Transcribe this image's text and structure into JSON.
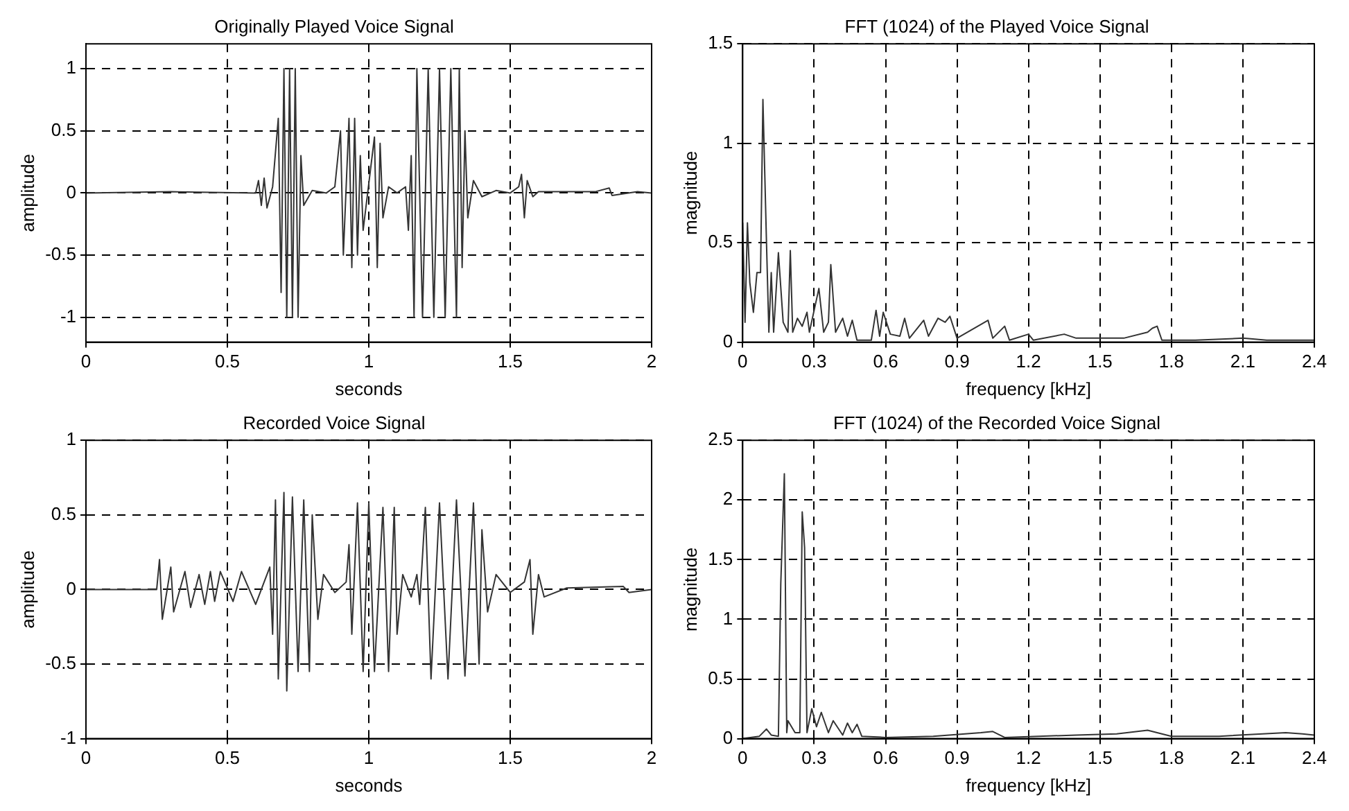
{
  "chart_data": [
    {
      "type": "line",
      "title": "Originally Played Voice Signal",
      "xlabel": "seconds",
      "ylabel": "amplitude",
      "xlim": [
        0,
        2
      ],
      "xticks": [
        0,
        0.5,
        1,
        1.5,
        2
      ],
      "ylim": [
        -1.2,
        1.2
      ],
      "yticks": [
        -1,
        -0.5,
        0,
        0.5,
        1
      ],
      "grid": true,
      "legend": false,
      "marker": "none",
      "line_style": "solid",
      "series": [
        {
          "color": "#333333",
          "x": [
            0,
            0.3,
            0.6,
            0.61,
            0.62,
            0.63,
            0.64,
            0.66,
            0.68,
            0.69,
            0.7,
            0.71,
            0.72,
            0.73,
            0.74,
            0.75,
            0.76,
            0.77,
            0.8,
            0.85,
            0.88,
            0.9,
            0.91,
            0.93,
            0.94,
            0.95,
            0.96,
            0.97,
            0.98,
            1.02,
            1.03,
            1.04,
            1.05,
            1.07,
            1.1,
            1.13,
            1.14,
            1.15,
            1.16,
            1.17,
            1.19,
            1.21,
            1.23,
            1.25,
            1.27,
            1.29,
            1.31,
            1.32,
            1.33,
            1.34,
            1.35,
            1.37,
            1.4,
            1.45,
            1.5,
            1.53,
            1.54,
            1.55,
            1.56,
            1.58,
            1.6,
            1.8,
            1.85,
            1.86,
            1.95,
            2
          ],
          "values": [
            0,
            0.01,
            0,
            0.1,
            -0.1,
            0.12,
            -0.12,
            0.05,
            0.6,
            -0.8,
            1,
            -1,
            1,
            -1,
            1,
            -1,
            0.3,
            -0.1,
            0.02,
            0,
            0.05,
            0.5,
            -0.5,
            0.6,
            -0.6,
            0.6,
            -0.5,
            0.3,
            -0.3,
            0.45,
            -0.6,
            0.4,
            -0.2,
            0.05,
            0,
            0.05,
            -0.3,
            0.3,
            -1,
            1,
            -1,
            1,
            -1,
            1,
            -1,
            1,
            -1,
            1,
            -0.6,
            0.5,
            -0.2,
            0.1,
            -0.03,
            0.02,
            0,
            0.05,
            0.15,
            -0.2,
            0.1,
            -0.03,
            0.01,
            0.01,
            0.04,
            -0.02,
            0.01,
            0
          ]
        }
      ]
    },
    {
      "type": "line",
      "title": "FFT (1024) of the Played Voice Signal",
      "xlabel": "frequency [kHz]",
      "ylabel": "magnitude",
      "xlim": [
        0,
        2.4
      ],
      "xticks": [
        0,
        0.3,
        0.6,
        0.9,
        1.2,
        1.5,
        1.8,
        2.1,
        2.4
      ],
      "ylim": [
        0,
        1.5
      ],
      "yticks": [
        0,
        0.5,
        1,
        1.5
      ],
      "grid": true,
      "legend": false,
      "marker": "none",
      "line_style": "solid",
      "series": [
        {
          "color": "#333333",
          "x": [
            0,
            0.01,
            0.02,
            0.03,
            0.045,
            0.06,
            0.075,
            0.085,
            0.1,
            0.11,
            0.12,
            0.13,
            0.15,
            0.17,
            0.19,
            0.2,
            0.21,
            0.23,
            0.25,
            0.27,
            0.28,
            0.32,
            0.34,
            0.36,
            0.37,
            0.39,
            0.42,
            0.44,
            0.46,
            0.48,
            0.54,
            0.56,
            0.575,
            0.59,
            0.62,
            0.66,
            0.68,
            0.7,
            0.76,
            0.78,
            0.82,
            0.85,
            0.87,
            0.9,
            1.03,
            1.05,
            1.1,
            1.12,
            1.2,
            1.22,
            1.35,
            1.4,
            1.5,
            1.6,
            1.7,
            1.72,
            1.74,
            1.76,
            1.9,
            2.1,
            2.2,
            2.4
          ],
          "values": [
            0.6,
            0.1,
            0.6,
            0.3,
            0.15,
            0.35,
            0.35,
            1.22,
            0.5,
            0.05,
            0.35,
            0.05,
            0.45,
            0.1,
            0.05,
            0.46,
            0.05,
            0.12,
            0.08,
            0.15,
            0.05,
            0.27,
            0.05,
            0.1,
            0.39,
            0.05,
            0.12,
            0.03,
            0.11,
            0.01,
            0.01,
            0.16,
            0.03,
            0.15,
            0.04,
            0.03,
            0.12,
            0.02,
            0.11,
            0.03,
            0.12,
            0.1,
            0.13,
            0.02,
            0.11,
            0.02,
            0.08,
            0.01,
            0.04,
            0.01,
            0.04,
            0.02,
            0.02,
            0.02,
            0.05,
            0.07,
            0.08,
            0.01,
            0.01,
            0.02,
            0.01,
            0.01
          ]
        }
      ]
    },
    {
      "type": "line",
      "title": "Recorded Voice Signal",
      "xlabel": "seconds",
      "ylabel": "amplitude",
      "xlim": [
        0,
        2
      ],
      "xticks": [
        0,
        0.5,
        1,
        1.5,
        2
      ],
      "ylim": [
        -1,
        1
      ],
      "yticks": [
        -1,
        -0.5,
        0,
        0.5,
        1
      ],
      "grid": true,
      "legend": false,
      "marker": "none",
      "line_style": "solid",
      "series": [
        {
          "color": "#333333",
          "x": [
            0,
            0.25,
            0.26,
            0.27,
            0.3,
            0.31,
            0.35,
            0.37,
            0.4,
            0.42,
            0.44,
            0.455,
            0.475,
            0.52,
            0.55,
            0.6,
            0.65,
            0.66,
            0.67,
            0.68,
            0.7,
            0.71,
            0.73,
            0.75,
            0.77,
            0.79,
            0.8,
            0.82,
            0.84,
            0.88,
            0.92,
            0.93,
            0.94,
            0.96,
            0.98,
            1.0,
            1.02,
            1.05,
            1.07,
            1.09,
            1.1,
            1.12,
            1.15,
            1.17,
            1.18,
            1.2,
            1.22,
            1.25,
            1.28,
            1.31,
            1.34,
            1.37,
            1.39,
            1.4,
            1.42,
            1.45,
            1.5,
            1.55,
            1.57,
            1.58,
            1.6,
            1.62,
            1.7,
            1.9,
            1.92,
            2
          ],
          "values": [
            0,
            0,
            0.2,
            -0.2,
            0.15,
            -0.15,
            0.12,
            -0.12,
            0.1,
            -0.1,
            0.12,
            -0.08,
            0.12,
            -0.08,
            0.12,
            -0.1,
            0.15,
            -0.3,
            0.6,
            -0.6,
            0.65,
            -0.68,
            0.62,
            -0.55,
            0.6,
            -0.55,
            0.5,
            -0.2,
            0.1,
            -0.02,
            0.05,
            0.3,
            -0.3,
            0.58,
            -0.55,
            0.58,
            -0.55,
            0.55,
            -0.55,
            0.55,
            -0.3,
            0.1,
            -0.05,
            0.1,
            -0.1,
            0.55,
            -0.6,
            0.58,
            -0.6,
            0.6,
            -0.58,
            0.58,
            -0.5,
            0.4,
            -0.15,
            0.1,
            -0.02,
            0.05,
            0.2,
            -0.3,
            0.1,
            -0.05,
            0.01,
            0.02,
            -0.02,
            0
          ]
        }
      ]
    },
    {
      "type": "line",
      "title": "FFT (1024) of the Recorded Voice Signal",
      "xlabel": "frequency [kHz]",
      "ylabel": "magnitude",
      "xlim": [
        0,
        2.4
      ],
      "xticks": [
        0,
        0.3,
        0.6,
        0.9,
        1.2,
        1.5,
        1.8,
        2.1,
        2.4
      ],
      "ylim": [
        0,
        2.5
      ],
      "yticks": [
        0,
        0.5,
        1,
        1.5,
        2,
        2.5
      ],
      "grid": true,
      "legend": false,
      "marker": "none",
      "line_style": "solid",
      "series": [
        {
          "color": "#333333",
          "x": [
            0,
            0.07,
            0.1,
            0.12,
            0.15,
            0.16,
            0.175,
            0.185,
            0.19,
            0.22,
            0.24,
            0.25,
            0.26,
            0.27,
            0.29,
            0.31,
            0.33,
            0.36,
            0.38,
            0.42,
            0.44,
            0.46,
            0.48,
            0.5,
            0.6,
            0.8,
            1.0,
            1.05,
            1.1,
            1.4,
            1.57,
            1.7,
            1.8,
            2.0,
            2.28,
            2.35,
            2.4
          ],
          "values": [
            0,
            0.02,
            0.08,
            0.03,
            0.02,
            1.3,
            2.22,
            0.05,
            0.15,
            0.05,
            0.05,
            1.9,
            1.6,
            0.05,
            0.25,
            0.1,
            0.22,
            0.05,
            0.15,
            0.03,
            0.13,
            0.05,
            0.12,
            0.02,
            0.01,
            0.02,
            0.05,
            0.06,
            0.01,
            0.03,
            0.04,
            0.07,
            0.02,
            0.02,
            0.05,
            0.04,
            0.03
          ]
        }
      ]
    }
  ]
}
